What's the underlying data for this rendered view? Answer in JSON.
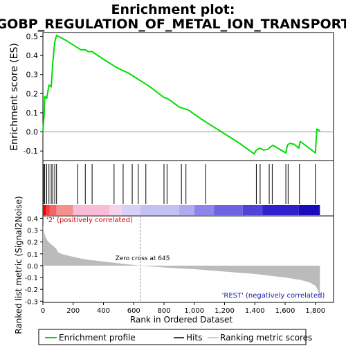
{
  "chart_data": {
    "type": "line",
    "title_line1": "Enrichment plot:",
    "title_line2": "GOBP_REGULATION_OF_METAL_ION_TRANSPORT",
    "es_panel": {
      "ylabel": "Enrichment score (ES)",
      "ylim": [
        -0.15,
        0.52
      ],
      "yticks": [
        -0.1,
        0.0,
        0.1,
        0.2,
        0.3,
        0.4,
        0.5
      ],
      "ytick_labels": [
        "-0.1",
        "0.0",
        "0.1",
        "0.2",
        "0.3",
        "0.4",
        "0.5"
      ],
      "x": [
        0,
        8,
        12,
        25,
        40,
        55,
        65,
        78,
        90,
        150,
        230,
        250,
        280,
        300,
        325,
        400,
        480,
        530,
        560,
        600,
        700,
        800,
        820,
        850,
        900,
        920,
        940,
        960,
        1050,
        1100,
        1200,
        1300,
        1395,
        1410,
        1430,
        1460,
        1490,
        1500,
        1520,
        1605,
        1615,
        1630,
        1660,
        1690,
        1700,
        1800,
        1810,
        1830
      ],
      "es": [
        0.0,
        0.09,
        0.185,
        0.175,
        0.245,
        0.235,
        0.36,
        0.47,
        0.505,
        0.48,
        0.44,
        0.43,
        0.43,
        0.42,
        0.42,
        0.38,
        0.34,
        0.32,
        0.31,
        0.29,
        0.24,
        0.18,
        0.175,
        0.16,
        0.13,
        0.125,
        0.12,
        0.115,
        0.065,
        0.04,
        -0.01,
        -0.06,
        -0.115,
        -0.095,
        -0.085,
        -0.095,
        -0.09,
        -0.08,
        -0.07,
        -0.11,
        -0.07,
        -0.06,
        -0.065,
        -0.085,
        -0.05,
        -0.11,
        0.015,
        0.005
      ]
    },
    "hits": [
      5,
      12,
      25,
      40,
      55,
      65,
      78,
      90,
      230,
      280,
      325,
      470,
      530,
      590,
      630,
      680,
      800,
      820,
      915,
      945,
      1075,
      1410,
      1435,
      1495,
      1515,
      1605,
      1620,
      1695,
      1800
    ],
    "rank_panel": {
      "ylabel": "Ranked list metric (Signal2Noise)",
      "ylim": [
        -0.31,
        0.42
      ],
      "yticks": [
        -0.3,
        -0.2,
        -0.1,
        0.0,
        0.1,
        0.2,
        0.3,
        0.4
      ],
      "ytick_labels": [
        "-0.3",
        "-0.2",
        "-0.1",
        "0.0",
        "0.1",
        "0.2",
        "0.3",
        "0.4"
      ],
      "x": [
        0,
        5,
        15,
        30,
        50,
        70,
        90,
        100,
        120,
        150,
        200,
        250,
        300,
        400,
        500,
        645,
        800,
        1000,
        1200,
        1400,
        1600,
        1700,
        1760,
        1800,
        1815,
        1825,
        1830
      ],
      "values": [
        0.34,
        0.3,
        0.25,
        0.21,
        0.185,
        0.165,
        0.14,
        0.115,
        0.1,
        0.09,
        0.075,
        0.06,
        0.05,
        0.035,
        0.02,
        0.0,
        -0.015,
        -0.03,
        -0.05,
        -0.07,
        -0.1,
        -0.12,
        -0.14,
        -0.17,
        -0.2,
        -0.25,
        -0.28
      ]
    },
    "xlabel": "Rank in Ordered Dataset",
    "xlim": [
      0,
      1920
    ],
    "xticks": [
      0,
      200,
      400,
      600,
      800,
      1000,
      1200,
      1400,
      1600,
      1800
    ],
    "xtick_labels": [
      "0",
      "200",
      "400",
      "600",
      "800",
      "1,000",
      "1,200",
      "1,400",
      "1,600",
      "1,800"
    ],
    "n_ranked": 1830,
    "zero_cross": 645,
    "zero_cross_label": "Zero cross at 645",
    "pos_label": "'2' (positively correlated)",
    "neg_label": "'REST' (negatively correlated)",
    "legend": {
      "position": "bottom",
      "entries": [
        "Enrichment profile",
        "Hits",
        "Ranking metric scores"
      ]
    },
    "colors": {
      "es_line": "#00dd00",
      "hit": "#000000",
      "metric_fill": "#bbbbbb",
      "pos_text": "#dd0000",
      "neg_text": "#1a1aaa",
      "heatbar": [
        "#ee0000",
        "#f43c3c",
        "#f46464",
        "#f49090",
        "#f8bcd8",
        "#f6d2ec",
        "#d8d0f6",
        "#c4c0f4",
        "#b0aaf0",
        "#8c86ea",
        "#6c62e2",
        "#5044d8",
        "#3020cc",
        "#1a0cb8"
      ],
      "heatbar_breaks": [
        0,
        20,
        45,
        90,
        200,
        440,
        520,
        645,
        900,
        1000,
        1130,
        1320,
        1450,
        1690,
        1830
      ]
    }
  }
}
